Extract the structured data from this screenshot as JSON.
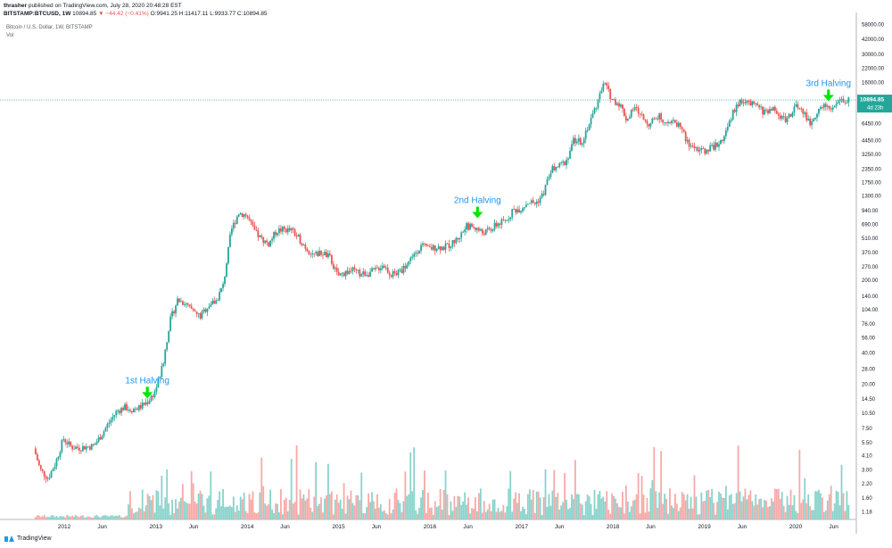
{
  "header": {
    "author": "thrasher",
    "published": "published on TradingView.com, July 28, 2020 20:48:28 EST",
    "symbol": "BITSTAMP:BTCUSD, 1W",
    "close": "10894.85",
    "change": "▼ −44.42 (−0.41%)",
    "ohlc": "O:9941.25 H:11417.11 L:9933.77 C:10894.85"
  },
  "legend": {
    "title": "Bitcoin / U.S. Dollar, 1W, BITSTAMP",
    "vol": "Vol"
  },
  "footer": {
    "brand": "TradingView"
  },
  "colors": {
    "up": "#26a69a",
    "down": "#ef5350",
    "vol_up": "#89d3cb",
    "vol_down": "#f7a9a7",
    "last_line": "#26a69a",
    "axis_text": "#131722",
    "annotation_text": "#2196f3",
    "arrow": "#00e600"
  },
  "chart_data": {
    "type": "candlestick",
    "title": "Bitcoin / U.S. Dollar, 1W, BITSTAMP",
    "scale": "log",
    "y_ticks": [
      58000,
      42000,
      30000,
      22000,
      16000,
      11000,
      8850,
      6450,
      4450,
      3250,
      2350,
      1750,
      1300,
      940,
      690,
      510,
      370,
      270,
      200,
      140,
      104,
      76,
      56,
      40,
      28,
      20,
      14.5,
      10.5,
      7.5,
      5.5,
      4.1,
      3,
      2.2,
      1.6,
      1.18
    ],
    "y_tick_labels": [
      "58000.00",
      "42000.00",
      "30000.00",
      "22000.00",
      "16000.00",
      "11000.00",
      "8850.00",
      "6450.00",
      "4450.00",
      "3250.00",
      "2350.00",
      "1750.00",
      "1300.00",
      "940.00",
      "690.00",
      "510.00",
      "370.00",
      "270.00",
      "200.00",
      "140.00",
      "104.00",
      "76.00",
      "56.00",
      "40.00",
      "28.00",
      "20.00",
      "14.50",
      "10.50",
      "7.50",
      "5.50",
      "4.10",
      "3.00",
      "2.20",
      "1.60",
      "1.18"
    ],
    "x_labels": [
      "2012",
      "Jun",
      "2013",
      "Jun",
      "2014",
      "Jun",
      "2015",
      "Jun",
      "2016",
      "Jun",
      "2017",
      "Jun",
      "2018",
      "Jun",
      "2019",
      "Jun",
      "2020",
      "Jun"
    ],
    "x_label_dates": [
      "2012-01-01",
      "2012-06-01",
      "2013-01-01",
      "2013-06-01",
      "2014-01-01",
      "2014-06-01",
      "2015-01-01",
      "2015-06-01",
      "2016-01-01",
      "2016-06-01",
      "2017-01-01",
      "2017-06-01",
      "2018-01-01",
      "2018-06-01",
      "2019-01-01",
      "2019-06-01",
      "2020-01-01",
      "2020-06-01"
    ],
    "last_price": "10894.85",
    "countdown": "4d 23h",
    "price_path": [
      [
        "2011-09-01",
        5.2
      ],
      [
        "2011-10-01",
        3.0
      ],
      [
        "2011-11-01",
        2.5
      ],
      [
        "2011-12-01",
        3.5
      ],
      [
        "2012-01-01",
        6.0
      ],
      [
        "2012-02-01",
        5.0
      ],
      [
        "2012-03-01",
        4.9
      ],
      [
        "2012-04-01",
        5.0
      ],
      [
        "2012-05-01",
        5.1
      ],
      [
        "2012-06-01",
        6.5
      ],
      [
        "2012-07-01",
        8.5
      ],
      [
        "2012-08-01",
        11.0
      ],
      [
        "2012-09-01",
        12.0
      ],
      [
        "2012-10-01",
        11.5
      ],
      [
        "2012-11-01",
        12.0
      ],
      [
        "2012-12-01",
        13.5
      ],
      [
        "2013-01-01",
        17.0
      ],
      [
        "2013-02-01",
        30.0
      ],
      [
        "2013-03-01",
        80.0
      ],
      [
        "2013-04-01",
        130.0
      ],
      [
        "2013-05-01",
        120.0
      ],
      [
        "2013-06-01",
        100.0
      ],
      [
        "2013-07-01",
        90.0
      ],
      [
        "2013-08-01",
        115.0
      ],
      [
        "2013-09-01",
        125.0
      ],
      [
        "2013-10-01",
        180.0
      ],
      [
        "2013-11-01",
        600.0
      ],
      [
        "2013-12-01",
        900.0
      ],
      [
        "2014-01-01",
        850.0
      ],
      [
        "2014-02-01",
        600.0
      ],
      [
        "2014-03-01",
        500.0
      ],
      [
        "2014-04-01",
        450.0
      ],
      [
        "2014-05-01",
        600.0
      ],
      [
        "2014-06-01",
        620.0
      ],
      [
        "2014-07-01",
        600.0
      ],
      [
        "2014-08-01",
        500.0
      ],
      [
        "2014-09-01",
        400.0
      ],
      [
        "2014-10-01",
        350.0
      ],
      [
        "2014-11-01",
        370.0
      ],
      [
        "2014-12-01",
        330.0
      ],
      [
        "2015-01-01",
        220.0
      ],
      [
        "2015-02-01",
        240.0
      ],
      [
        "2015-03-01",
        250.0
      ],
      [
        "2015-04-01",
        230.0
      ],
      [
        "2015-05-01",
        235.0
      ],
      [
        "2015-06-01",
        250.0
      ],
      [
        "2015-07-01",
        285.0
      ],
      [
        "2015-08-01",
        230.0
      ],
      [
        "2015-09-01",
        235.0
      ],
      [
        "2015-10-01",
        280.0
      ],
      [
        "2015-11-01",
        360.0
      ],
      [
        "2015-12-01",
        430.0
      ],
      [
        "2016-01-01",
        400.0
      ],
      [
        "2016-02-01",
        420.0
      ],
      [
        "2016-03-01",
        415.0
      ],
      [
        "2016-04-01",
        450.0
      ],
      [
        "2016-05-01",
        530.0
      ],
      [
        "2016-06-01",
        670.0
      ],
      [
        "2016-07-01",
        650.0
      ],
      [
        "2016-08-01",
        575.0
      ],
      [
        "2016-09-01",
        610.0
      ],
      [
        "2016-10-01",
        700.0
      ],
      [
        "2016-11-01",
        740.0
      ],
      [
        "2016-12-01",
        950.0
      ],
      [
        "2017-01-01",
        980.0
      ],
      [
        "2017-02-01",
        1150.0
      ],
      [
        "2017-03-01",
        1100.0
      ],
      [
        "2017-04-01",
        1350.0
      ],
      [
        "2017-05-01",
        2300.0
      ],
      [
        "2017-06-01",
        2500.0
      ],
      [
        "2017-07-01",
        2800.0
      ],
      [
        "2017-08-01",
        4500.0
      ],
      [
        "2017-09-01",
        4300.0
      ],
      [
        "2017-10-01",
        6400.0
      ],
      [
        "2017-11-01",
        10000.0
      ],
      [
        "2017-12-01",
        16000.0
      ],
      [
        "2018-01-01",
        11000.0
      ],
      [
        "2018-02-01",
        10000.0
      ],
      [
        "2018-03-01",
        7000.0
      ],
      [
        "2018-04-01",
        9200.0
      ],
      [
        "2018-05-01",
        7500.0
      ],
      [
        "2018-06-01",
        6300.0
      ],
      [
        "2018-07-01",
        7700.0
      ],
      [
        "2018-08-01",
        7000.0
      ],
      [
        "2018-09-01",
        6600.0
      ],
      [
        "2018-10-01",
        6300.0
      ],
      [
        "2018-11-01",
        4000.0
      ],
      [
        "2018-12-01",
        3800.0
      ],
      [
        "2019-01-01",
        3500.0
      ],
      [
        "2019-02-01",
        3800.0
      ],
      [
        "2019-03-01",
        4100.0
      ],
      [
        "2019-04-01",
        5300.0
      ],
      [
        "2019-05-01",
        8500.0
      ],
      [
        "2019-06-01",
        11000.0
      ],
      [
        "2019-07-01",
        10000.0
      ],
      [
        "2019-08-01",
        9600.0
      ],
      [
        "2019-09-01",
        8300.0
      ],
      [
        "2019-10-01",
        9200.0
      ],
      [
        "2019-11-01",
        7500.0
      ],
      [
        "2019-12-01",
        7200.0
      ],
      [
        "2020-01-01",
        9350.0
      ],
      [
        "2020-02-01",
        8600.0
      ],
      [
        "2020-03-01",
        6400.0
      ],
      [
        "2020-04-01",
        8700.0
      ],
      [
        "2020-05-01",
        9500.0
      ],
      [
        "2020-06-01",
        9150.0
      ],
      [
        "2020-07-01",
        10894.85
      ]
    ],
    "annotations": [
      {
        "label": "1st Halving",
        "date": "2012-11-28",
        "price": 12.0
      },
      {
        "label": "2nd Halving",
        "date": "2016-07-09",
        "price": 650.0
      },
      {
        "label": "3rd Halving",
        "date": "2020-05-11",
        "price": 8700.0
      }
    ],
    "volume_series": "Vol"
  }
}
